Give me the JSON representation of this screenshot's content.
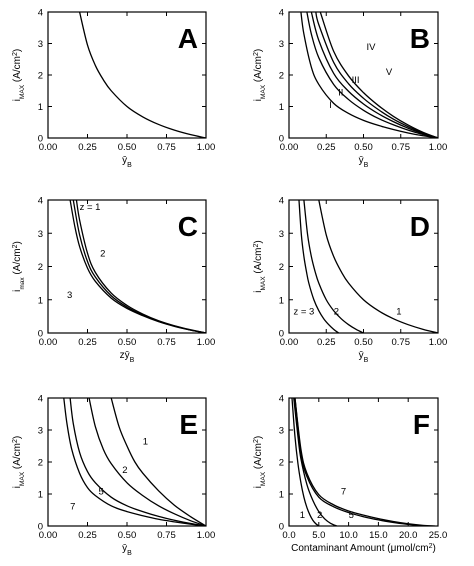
{
  "chart_data": [
    {
      "panel": "A",
      "type": "line",
      "xlabel": "ȳ",
      "xlabel_sub": "B",
      "ylabel": "i",
      "ylabel_sub": "MAX",
      "ylabel_unit": "(A/cm",
      "ylabel_unit_sup": "2",
      "ylabel_unit_end": ")",
      "xlim": [
        0,
        1
      ],
      "ylim": [
        0,
        4
      ],
      "xticks": [
        "0.00",
        "0.25",
        "0.50",
        "0.75",
        "1.00"
      ],
      "yticks": [
        "0",
        "1",
        "2",
        "3",
        "4"
      ],
      "series": [
        {
          "x": [
            0.2,
            0.25,
            0.3,
            0.35,
            0.4,
            0.5,
            0.6,
            0.7,
            0.8,
            0.9,
            1.0
          ],
          "y": [
            4.0,
            2.95,
            2.3,
            1.85,
            1.5,
            1.0,
            0.67,
            0.43,
            0.25,
            0.11,
            0.0
          ]
        }
      ],
      "annotations": []
    },
    {
      "panel": "B",
      "type": "line",
      "xlabel": "ȳ",
      "xlabel_sub": "B",
      "ylabel": "i",
      "ylabel_sub": "MAX",
      "ylabel_unit": "(A/cm",
      "ylabel_unit_sup": "2",
      "ylabel_unit_end": ")",
      "xlim": [
        0,
        1
      ],
      "ylim": [
        0,
        4
      ],
      "xticks": [
        "0.00",
        "0.25",
        "0.50",
        "0.75",
        "1.00"
      ],
      "yticks": [
        "0",
        "1",
        "2",
        "3",
        "4"
      ],
      "series": [
        {
          "x": [
            0.08,
            0.1,
            0.15,
            0.2,
            0.3,
            0.4,
            0.5,
            0.6,
            0.7,
            0.8,
            0.9,
            1.0
          ],
          "y": [
            4.0,
            3.3,
            2.25,
            1.7,
            1.1,
            0.78,
            0.56,
            0.4,
            0.27,
            0.16,
            0.07,
            0.0
          ]
        },
        {
          "x": [
            0.12,
            0.15,
            0.2,
            0.3,
            0.4,
            0.5,
            0.6,
            0.7,
            0.8,
            0.9,
            1.0
          ],
          "y": [
            4.0,
            3.3,
            2.55,
            1.7,
            1.22,
            0.88,
            0.62,
            0.42,
            0.25,
            0.11,
            0.0
          ]
        },
        {
          "x": [
            0.15,
            0.2,
            0.3,
            0.4,
            0.5,
            0.6,
            0.7,
            0.8,
            0.9,
            1.0
          ],
          "y": [
            4.0,
            3.1,
            2.05,
            1.48,
            1.08,
            0.77,
            0.52,
            0.31,
            0.14,
            0.0
          ]
        },
        {
          "x": [
            0.18,
            0.2,
            0.3,
            0.4,
            0.5,
            0.6,
            0.7,
            0.8,
            0.9,
            1.0
          ],
          "y": [
            4.0,
            3.6,
            2.4,
            1.72,
            1.26,
            0.9,
            0.6,
            0.36,
            0.16,
            0.0
          ]
        },
        {
          "x": [
            0.21,
            0.3,
            0.4,
            0.5,
            0.6,
            0.7,
            0.8,
            0.9,
            1.0
          ],
          "y": [
            4.0,
            2.75,
            1.97,
            1.44,
            1.03,
            0.69,
            0.41,
            0.18,
            0.0
          ]
        }
      ],
      "annotations": [
        {
          "text": "I",
          "x": 0.27,
          "y": 0.95
        },
        {
          "text": "II",
          "x": 0.33,
          "y": 1.35
        },
        {
          "text": "III",
          "x": 0.42,
          "y": 1.75
        },
        {
          "text": "IV",
          "x": 0.52,
          "y": 2.8
        },
        {
          "text": "V",
          "x": 0.65,
          "y": 2.0
        }
      ]
    },
    {
      "panel": "C",
      "type": "line",
      "xlabel": "zȳ",
      "xlabel_sub": "B",
      "ylabel": "i",
      "ylabel_sub": "max",
      "ylabel_unit": "(A/cm",
      "ylabel_unit_sup": "2",
      "ylabel_unit_end": ")",
      "xlim": [
        0,
        1
      ],
      "ylim": [
        0,
        4
      ],
      "xticks": [
        "0.00",
        "0.25",
        "0.50",
        "0.75",
        "1.00"
      ],
      "yticks": [
        "0",
        "1",
        "2",
        "3",
        "4"
      ],
      "series": [
        {
          "x": [
            0.14,
            0.17,
            0.2,
            0.25,
            0.3,
            0.4,
            0.5,
            0.6,
            0.7,
            0.8,
            0.9,
            1.0
          ],
          "y": [
            4.0,
            3.2,
            2.6,
            1.95,
            1.55,
            1.05,
            0.74,
            0.52,
            0.34,
            0.2,
            0.09,
            0.0
          ]
        },
        {
          "x": [
            0.16,
            0.2,
            0.25,
            0.3,
            0.4,
            0.5,
            0.6,
            0.7,
            0.8,
            0.9,
            1.0
          ],
          "y": [
            4.0,
            2.95,
            2.15,
            1.68,
            1.12,
            0.78,
            0.54,
            0.35,
            0.21,
            0.09,
            0.0
          ]
        },
        {
          "x": [
            0.18,
            0.2,
            0.25,
            0.3,
            0.4,
            0.5,
            0.6,
            0.7,
            0.8,
            0.9,
            1.0
          ],
          "y": [
            4.0,
            3.4,
            2.4,
            1.82,
            1.2,
            0.83,
            0.57,
            0.37,
            0.22,
            0.1,
            0.0
          ]
        }
      ],
      "annotations": [
        {
          "text": "z = 1",
          "x": 0.2,
          "y": 3.7
        },
        {
          "text": "2",
          "x": 0.33,
          "y": 2.3
        },
        {
          "text": "3",
          "x": 0.12,
          "y": 1.05
        }
      ]
    },
    {
      "panel": "D",
      "type": "line",
      "xlabel": "ȳ",
      "xlabel_sub": "B",
      "ylabel": "i",
      "ylabel_sub": "MAX",
      "ylabel_unit": "(A/cm",
      "ylabel_unit_sup": "2",
      "ylabel_unit_end": ")",
      "xlim": [
        0,
        1
      ],
      "ylim": [
        0,
        4
      ],
      "xticks": [
        "0.00",
        "0.25",
        "0.50",
        "0.75",
        "1.00"
      ],
      "yticks": [
        "0",
        "1",
        "2",
        "3",
        "4"
      ],
      "series": [
        {
          "x": [
            0.2,
            0.25,
            0.3,
            0.35,
            0.4,
            0.5,
            0.6,
            0.7,
            0.8,
            0.9,
            1.0
          ],
          "y": [
            4.0,
            2.95,
            2.3,
            1.85,
            1.5,
            1.0,
            0.67,
            0.43,
            0.25,
            0.11,
            0.0
          ]
        },
        {
          "x": [
            0.1,
            0.125,
            0.15,
            0.175,
            0.2,
            0.25,
            0.3,
            0.35,
            0.4,
            0.45,
            0.5
          ],
          "y": [
            4.0,
            2.95,
            2.3,
            1.85,
            1.5,
            1.0,
            0.67,
            0.43,
            0.25,
            0.11,
            0.0
          ]
        },
        {
          "x": [
            0.067,
            0.083,
            0.1,
            0.117,
            0.133,
            0.167,
            0.2,
            0.233,
            0.267,
            0.3,
            0.333
          ],
          "y": [
            4.0,
            2.95,
            2.3,
            1.85,
            1.5,
            1.0,
            0.67,
            0.43,
            0.25,
            0.11,
            0.0
          ]
        }
      ],
      "annotations": [
        {
          "text": "1",
          "x": 0.72,
          "y": 0.55
        },
        {
          "text": "2",
          "x": 0.3,
          "y": 0.55
        },
        {
          "text": "z = 3",
          "x": 0.03,
          "y": 0.55
        }
      ]
    },
    {
      "panel": "E",
      "type": "line",
      "xlabel": "ȳ",
      "xlabel_sub": "B",
      "ylabel": "i",
      "ylabel_sub": "MAX",
      "ylabel_unit": "(A/cm",
      "ylabel_unit_sup": "2",
      "ylabel_unit_end": ")",
      "xlim": [
        0,
        1
      ],
      "ylim": [
        0,
        4
      ],
      "xticks": [
        "0.00",
        "0.25",
        "0.50",
        "0.75",
        "1.00"
      ],
      "yticks": [
        "0",
        "1",
        "2",
        "3",
        "4"
      ],
      "series": [
        {
          "x": [
            0.4,
            0.45,
            0.5,
            0.55,
            0.6,
            0.7,
            0.8,
            0.9,
            1.0
          ],
          "y": [
            4.0,
            3.1,
            2.5,
            2.0,
            1.65,
            1.1,
            0.65,
            0.3,
            0.0
          ]
        },
        {
          "x": [
            0.26,
            0.3,
            0.35,
            0.4,
            0.5,
            0.6,
            0.7,
            0.8,
            0.9,
            1.0
          ],
          "y": [
            4.0,
            3.1,
            2.4,
            1.95,
            1.35,
            0.95,
            0.63,
            0.38,
            0.17,
            0.0
          ]
        },
        {
          "x": [
            0.14,
            0.16,
            0.2,
            0.25,
            0.3,
            0.4,
            0.5,
            0.6,
            0.7,
            0.8,
            0.9,
            1.0
          ],
          "y": [
            4.0,
            3.2,
            2.3,
            1.7,
            1.35,
            0.9,
            0.63,
            0.45,
            0.3,
            0.18,
            0.08,
            0.0
          ]
        },
        {
          "x": [
            0.1,
            0.12,
            0.15,
            0.2,
            0.25,
            0.3,
            0.4,
            0.5,
            0.6,
            0.7,
            0.8,
            0.9,
            1.0
          ],
          "y": [
            4.0,
            3.2,
            2.4,
            1.65,
            1.2,
            0.95,
            0.63,
            0.45,
            0.32,
            0.21,
            0.13,
            0.06,
            0.0
          ]
        }
      ],
      "annotations": [
        {
          "text": "1",
          "x": 0.6,
          "y": 2.55
        },
        {
          "text": "2",
          "x": 0.47,
          "y": 1.65
        },
        {
          "text": "5",
          "x": 0.32,
          "y": 0.98
        },
        {
          "text": "7",
          "x": 0.14,
          "y": 0.52
        }
      ]
    },
    {
      "panel": "F",
      "type": "line",
      "xlabel": "Contaminant Amount (μmol/cm",
      "xlabel_sup": "2",
      "xlabel_end": ")",
      "ylabel": "i",
      "ylabel_sub": "MAX",
      "ylabel_unit": "(A/cm",
      "ylabel_unit_sup": "2",
      "ylabel_unit_end": ")",
      "xlim": [
        0,
        25
      ],
      "ylim": [
        0,
        4
      ],
      "xticks": [
        "0.0",
        "5.0",
        "10.0",
        "15.0",
        "20.0",
        "25.0"
      ],
      "yticks": [
        "0",
        "1",
        "2",
        "3",
        "4"
      ],
      "series": [
        {
          "x": [
            0.5,
            1.0,
            1.5,
            2.0,
            2.5,
            3.0,
            3.5,
            4.0,
            4.5,
            5.0
          ],
          "y": [
            4.0,
            2.8,
            1.95,
            1.35,
            0.9,
            0.58,
            0.35,
            0.18,
            0.07,
            0.0
          ]
        },
        {
          "x": [
            0.8,
            1.5,
            2.0,
            3.0,
            4.0,
            5.0,
            6.0,
            7.0,
            8.0
          ],
          "y": [
            4.0,
            2.8,
            2.1,
            1.3,
            0.8,
            0.45,
            0.22,
            0.08,
            0.0
          ]
        },
        {
          "x": [
            1.0,
            2.0,
            3.0,
            5.0,
            7.5,
            10.0,
            12.5,
            15.0,
            17.5,
            20.0,
            22.5
          ],
          "y": [
            4.0,
            2.3,
            1.55,
            0.9,
            0.6,
            0.42,
            0.29,
            0.19,
            0.11,
            0.05,
            0.0
          ]
        },
        {
          "x": [
            1.0,
            2.0,
            3.0,
            5.0,
            7.5,
            10.0,
            12.5,
            15.0,
            17.5,
            20.0,
            22.5,
            24.5
          ],
          "y": [
            4.0,
            2.4,
            1.65,
            0.98,
            0.66,
            0.47,
            0.34,
            0.23,
            0.14,
            0.07,
            0.02,
            0.0
          ]
        }
      ],
      "annotations": [
        {
          "text": "1",
          "x": 1.8,
          "y": 0.25
        },
        {
          "text": "2",
          "x": 4.7,
          "y": 0.25
        },
        {
          "text": "5",
          "x": 10.0,
          "y": 0.25
        },
        {
          "text": "7",
          "x": 8.7,
          "y": 0.98
        }
      ]
    }
  ]
}
